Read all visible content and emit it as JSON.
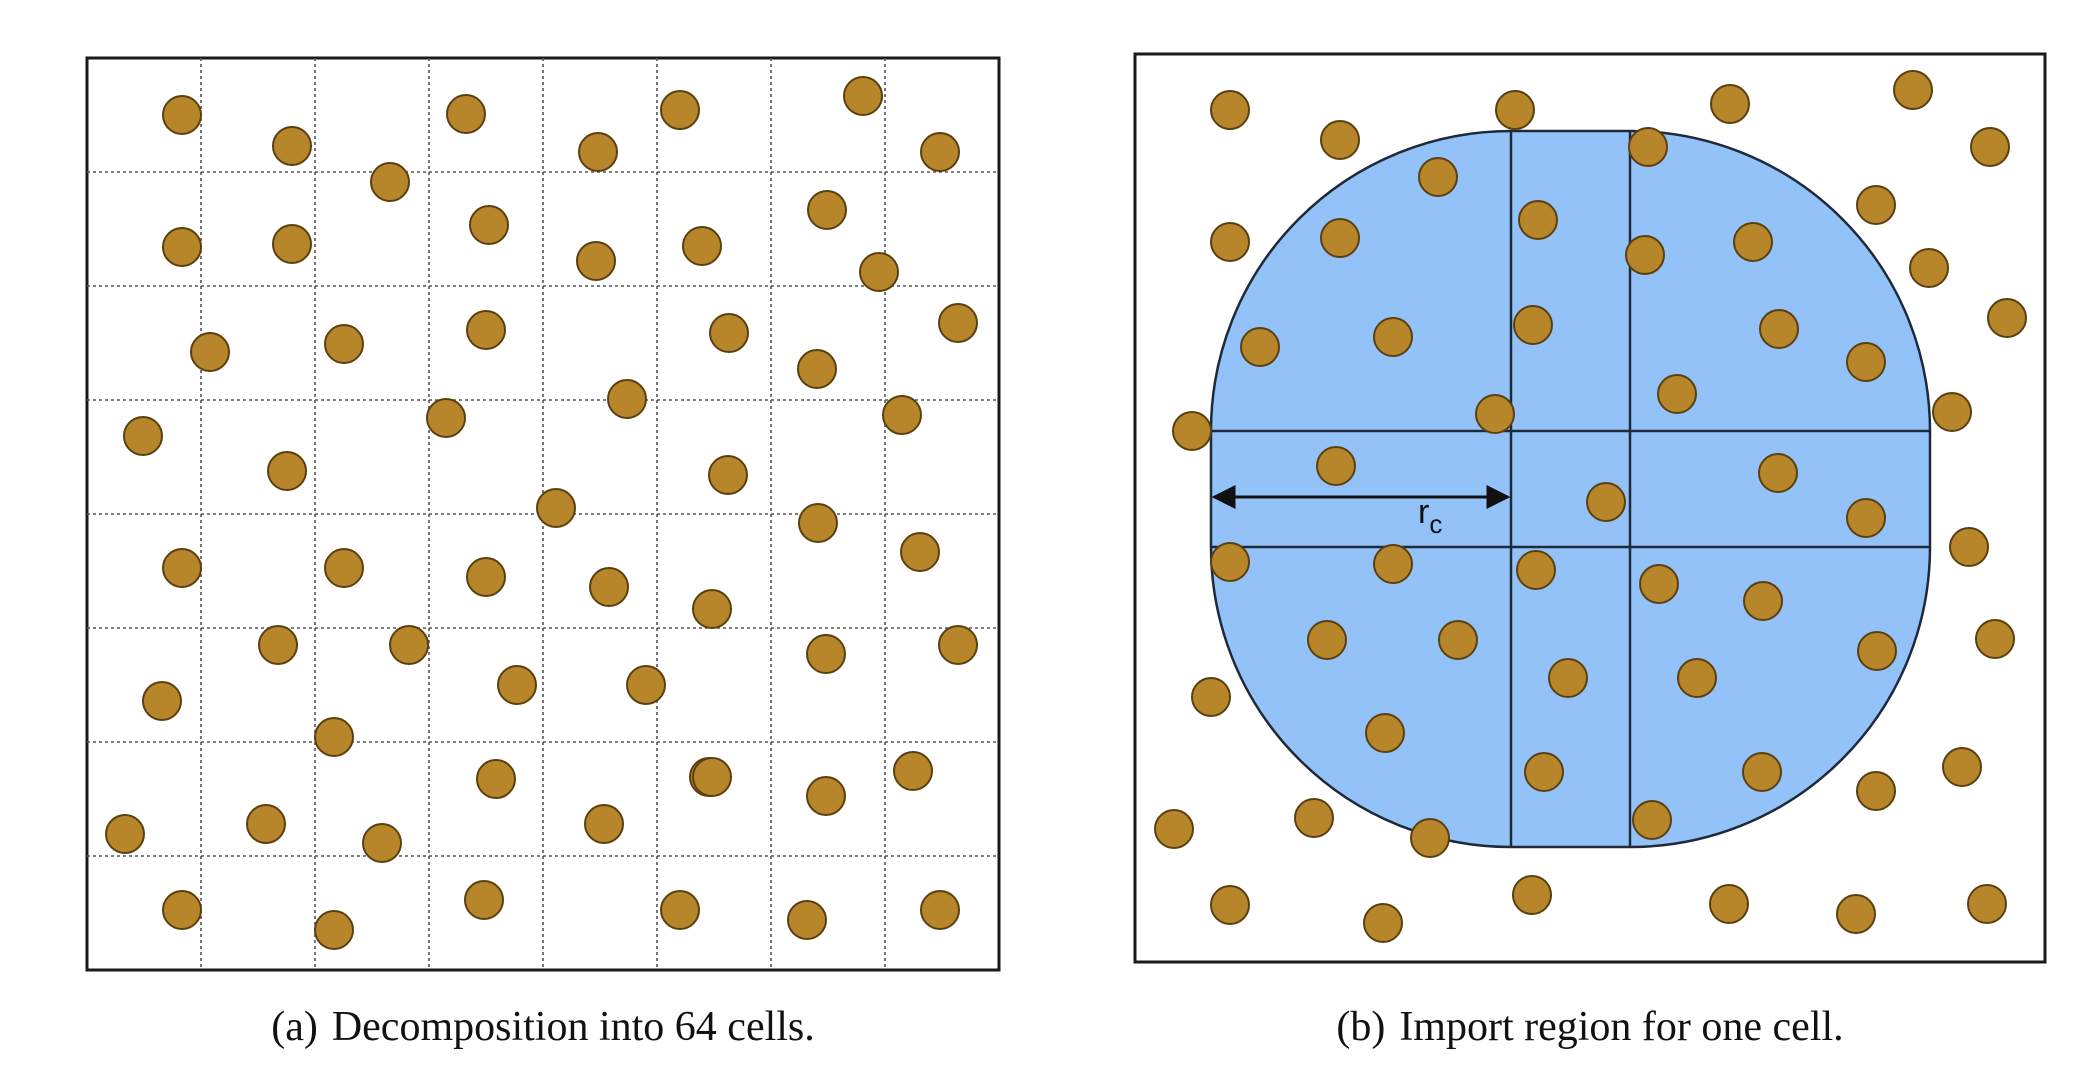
{
  "panels": [
    {
      "id": "a",
      "tag": "(a)",
      "caption": "Decomposition into 64 cells.",
      "grid": {
        "rows": 8,
        "cols": 8
      }
    },
    {
      "id": "b",
      "tag": "(b)",
      "caption": "Import region for one cell.",
      "cutoff_label": {
        "main": "r",
        "sub": "c"
      }
    }
  ],
  "colors": {
    "particle_fill": "#B8862A",
    "particle_stroke": "#5A4010",
    "import_region_fill": "#93C2F8",
    "import_region_stroke": "#1E2A3A",
    "frame_stroke": "#1A1A1A",
    "grid_stroke": "#555555"
  }
}
